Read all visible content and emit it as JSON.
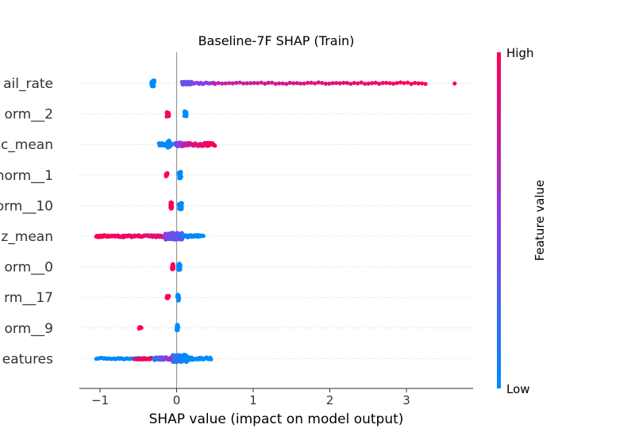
{
  "chart_data": {
    "type": "scatter",
    "title": "Baseline-7F SHAP (Train)",
    "xlabel": "SHAP value (impact on model output)",
    "xlim": [
      -1.3,
      3.85
    ],
    "xticks": [
      {
        "value": -1,
        "label": "−1"
      },
      {
        "value": 0,
        "label": "0"
      },
      {
        "value": 1,
        "label": "1"
      },
      {
        "value": 2,
        "label": "2"
      },
      {
        "value": 3,
        "label": "3"
      }
    ],
    "features": [
      "ail_rate",
      "orm__2",
      "c_mean",
      "norm__1",
      "orm__10",
      "z_mean",
      "orm__0",
      "rm__17",
      "orm__9",
      "eatures"
    ],
    "colorbar": {
      "label": "Feature value",
      "high": "High",
      "low": "Low",
      "high_color": "#ff0052",
      "low_color": "#008bfb"
    },
    "zero_line": true,
    "grid": "dotted horizontal per feature",
    "clusters": [
      [
        {
          "x0": -0.33,
          "x1": -0.29,
          "c0": 0.0,
          "c1": 0.0,
          "w": 0.19,
          "n": 16
        },
        {
          "x0": 0.07,
          "x1": 0.2,
          "c0": 0.35,
          "c1": 0.4,
          "w": 0.1,
          "n": 22
        },
        {
          "x0": 0.2,
          "x1": 0.5,
          "c0": 0.45,
          "c1": 0.55,
          "w": 0.07,
          "n": 14
        },
        {
          "x0": 0.5,
          "x1": 3.25,
          "c0": 0.7,
          "c1": 1.0,
          "w": 0.05,
          "n": 60
        },
        {
          "x0": 3.63,
          "x1": 3.63,
          "c0": 1.0,
          "c1": 1.0,
          "w": 0.03,
          "n": 1
        }
      ],
      [
        {
          "x0": -0.13,
          "x1": -0.1,
          "c0": 1.0,
          "c1": 0.95,
          "w": 0.18,
          "n": 18
        },
        {
          "x0": 0.1,
          "x1": 0.13,
          "c0": 0.0,
          "c1": 0.0,
          "w": 0.18,
          "n": 18
        }
      ],
      [
        {
          "x0": -0.23,
          "x1": -0.06,
          "c0": 0.02,
          "c1": 0.05,
          "w": 0.1,
          "n": 26
        },
        {
          "x0": -0.12,
          "x1": -0.09,
          "c0": 0.0,
          "c1": 0.0,
          "w": 0.25,
          "n": 16
        },
        {
          "x0": -0.02,
          "x1": 0.08,
          "c0": 0.35,
          "c1": 0.55,
          "w": 0.12,
          "n": 28
        },
        {
          "x0": 0.08,
          "x1": 0.5,
          "c0": 0.75,
          "c1": 1.0,
          "w": 0.1,
          "n": 60
        }
      ],
      [
        {
          "x0": -0.14,
          "x1": -0.12,
          "c0": 1.0,
          "c1": 1.0,
          "w": 0.12,
          "n": 10
        },
        {
          "x0": 0.03,
          "x1": 0.06,
          "c0": 0.0,
          "c1": 0.0,
          "w": 0.22,
          "n": 22
        }
      ],
      [
        {
          "x0": -0.08,
          "x1": -0.06,
          "c0": 1.0,
          "c1": 1.0,
          "w": 0.22,
          "n": 22
        },
        {
          "x0": 0.03,
          "x1": 0.07,
          "c0": 0.0,
          "c1": 0.0,
          "w": 0.22,
          "n": 22
        }
      ],
      [
        {
          "x0": -1.05,
          "x1": -0.1,
          "c0": 1.0,
          "c1": 0.85,
          "w": 0.06,
          "n": 85
        },
        {
          "x0": -0.15,
          "x1": 0.08,
          "c0": 0.45,
          "c1": 0.3,
          "w": 0.22,
          "n": 90
        },
        {
          "x0": 0.08,
          "x1": 0.35,
          "c0": 0.05,
          "c1": 0.0,
          "w": 0.08,
          "n": 32
        }
      ],
      [
        {
          "x0": -0.06,
          "x1": -0.04,
          "c0": 1.0,
          "c1": 1.0,
          "w": 0.18,
          "n": 18
        },
        {
          "x0": 0.02,
          "x1": 0.05,
          "c0": 0.0,
          "c1": 0.0,
          "w": 0.22,
          "n": 22
        }
      ],
      [
        {
          "x0": -0.13,
          "x1": -0.1,
          "c0": 1.0,
          "c1": 1.0,
          "w": 0.1,
          "n": 10
        },
        {
          "x0": 0.01,
          "x1": 0.03,
          "c0": 0.0,
          "c1": 0.0,
          "w": 0.22,
          "n": 22
        }
      ],
      [
        {
          "x0": -0.49,
          "x1": -0.46,
          "c0": 1.0,
          "c1": 1.0,
          "w": 0.06,
          "n": 6
        },
        {
          "x0": 0.0,
          "x1": 0.02,
          "c0": 0.0,
          "c1": 0.0,
          "w": 0.22,
          "n": 24
        }
      ],
      [
        {
          "x0": -1.05,
          "x1": -0.3,
          "c0": 0.0,
          "c1": 0.05,
          "w": 0.05,
          "n": 40
        },
        {
          "x0": -0.55,
          "x1": -0.3,
          "c0": 0.9,
          "c1": 1.0,
          "w": 0.05,
          "n": 18
        },
        {
          "x0": -0.3,
          "x1": -0.05,
          "c0": 0.1,
          "c1": 0.7,
          "w": 0.1,
          "n": 34
        },
        {
          "x0": -0.05,
          "x1": 0.15,
          "c0": 0.2,
          "c1": 0.0,
          "w": 0.25,
          "n": 70
        },
        {
          "x0": 0.15,
          "x1": 0.45,
          "c0": 0.0,
          "c1": 0.0,
          "w": 0.08,
          "n": 26
        }
      ]
    ]
  }
}
